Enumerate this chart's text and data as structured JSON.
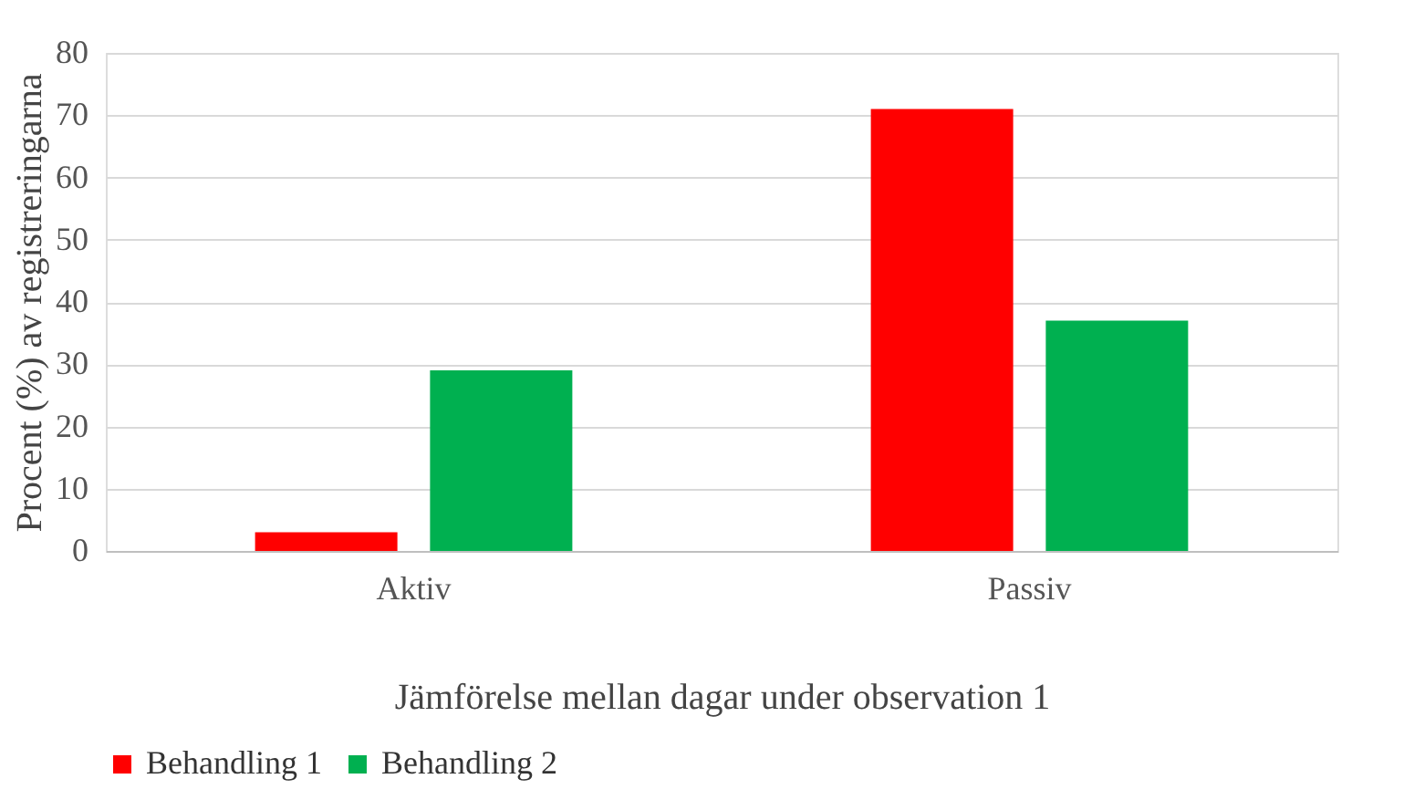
{
  "chart_data": {
    "type": "bar",
    "xlabel": "Jämförelse mellan dagar under observation 1",
    "ylabel": "Procent (%) av registreringarna",
    "categories": [
      "Aktiv",
      "Passiv"
    ],
    "series": [
      {
        "name": "Behandling 1",
        "color": "#ff0000",
        "values": [
          3,
          71
        ]
      },
      {
        "name": "Behandling 2",
        "color": "#00b050",
        "values": [
          29,
          37
        ]
      }
    ],
    "ylim": [
      0,
      80
    ],
    "yticks": [
      0,
      10,
      20,
      30,
      40,
      50,
      60,
      70,
      80
    ],
    "grid": "y",
    "legend": "bottom"
  }
}
